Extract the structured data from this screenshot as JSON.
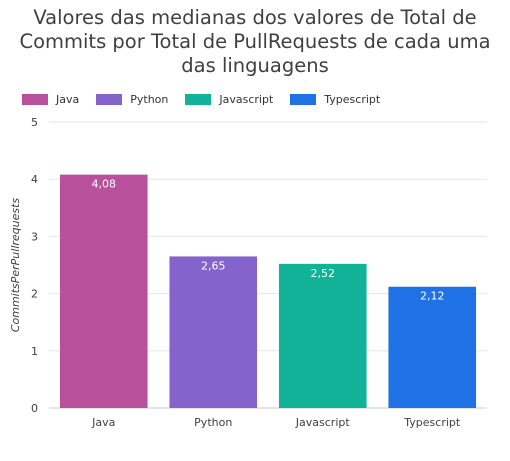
{
  "chart_data": {
    "type": "bar",
    "title": "Valores das medianas dos valores de Total de Commits por Total de PullRequests de cada uma das linguagens",
    "title_lines": [
      "Valores das medianas dos valores de Total de",
      "Commits por Total de PullRequests de cada uma",
      "das linguagens"
    ],
    "categories": [
      "Java",
      "Python",
      "Javascript",
      "Typescript"
    ],
    "values": [
      4.08,
      2.65,
      2.52,
      2.12
    ],
    "data_labels": [
      "4,08",
      "2,65",
      "2,52",
      "2,12"
    ],
    "colors": [
      "#b9509c",
      "#8464cc",
      "#12b298",
      "#1f71e6"
    ],
    "legend": [
      "Java",
      "Python",
      "Javascript",
      "Typescript"
    ],
    "legend_position": "top-left",
    "xlabel": "",
    "ylabel": "CommitsPerPullrequests",
    "ylim": [
      0,
      5
    ],
    "yticks": [
      "0",
      "1",
      "2",
      "3",
      "4",
      "5"
    ],
    "grid": true
  }
}
